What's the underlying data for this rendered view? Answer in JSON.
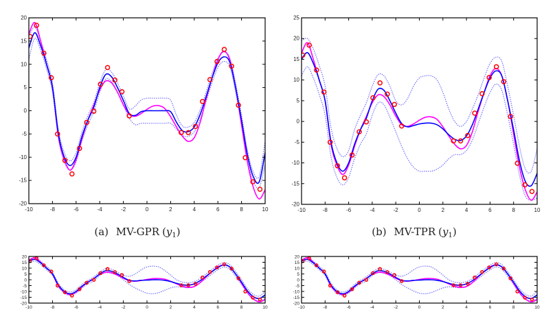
{
  "colors": {
    "truth": "#ff00ff",
    "mean": "#0000ff",
    "band": "#6f6fff",
    "observations": "#ff0000",
    "axes": "#000000"
  },
  "captions": [
    {
      "label": "(a)",
      "method": "MV-GPR",
      "variable": "y",
      "subscript": "1"
    },
    {
      "label": "(b)",
      "method": "MV-TPR",
      "variable": "y",
      "subscript": "1"
    }
  ],
  "chart_data": [
    {
      "type": "line",
      "panel": "top-left",
      "xlim": [
        -10,
        10
      ],
      "ylim": [
        -20,
        20
      ],
      "xticks": [
        -10,
        -8,
        -6,
        -4,
        -2,
        0,
        2,
        4,
        6,
        8,
        10
      ],
      "yticks": [
        -20,
        -15,
        -10,
        -5,
        0,
        5,
        10,
        15,
        20
      ],
      "grid": false,
      "x": [
        -10,
        -9.5,
        -9,
        -8.5,
        -8,
        -7.5,
        -7,
        -6.5,
        -6,
        -5.5,
        -5,
        -4.5,
        -4,
        -3.5,
        -3,
        -2.5,
        -2,
        -1.5,
        -1,
        -0.5,
        0,
        0.5,
        1,
        1.5,
        2,
        2.5,
        3,
        3.5,
        4,
        4.5,
        5,
        5.5,
        6,
        6.5,
        7,
        7.5,
        8,
        8.5,
        9,
        9.5,
        10
      ],
      "truth": [
        16.5,
        19,
        15,
        10,
        5,
        -5.5,
        -10.5,
        -12.8,
        -10.5,
        -6,
        -2,
        1.2,
        4.5,
        6.4,
        6,
        4,
        1.3,
        -0.8,
        -1.2,
        -0.6,
        0.3,
        1,
        1.1,
        0.5,
        -1.3,
        -3.5,
        -5.5,
        -6.6,
        -5.8,
        -2.5,
        2.5,
        7,
        11,
        12.8,
        11,
        5,
        -3,
        -11,
        -16.5,
        -19,
        -17
      ],
      "mean": [
        13.5,
        16.8,
        14,
        10,
        5,
        -5,
        -10,
        -11.8,
        -10,
        -5.5,
        -2,
        0.8,
        5,
        7.8,
        7.3,
        5,
        2.2,
        -0.6,
        -1,
        -0.2,
        0,
        0,
        0,
        0,
        -0.2,
        -2.5,
        -4.3,
        -4.5,
        -3.5,
        -0.8,
        3,
        7,
        10.3,
        11.6,
        10.5,
        5,
        -2,
        -9.5,
        -14.2,
        -15.3,
        -9
      ],
      "upper": [
        16,
        18,
        15,
        11,
        6,
        -4,
        -9,
        -10.8,
        -9,
        -4.5,
        -1,
        1.8,
        6,
        8.8,
        8.3,
        6,
        3.2,
        0.4,
        1,
        2.3,
        2.7,
        2.7,
        2.7,
        2.7,
        2.3,
        -1,
        -3.3,
        -3.5,
        -2.5,
        0.2,
        4,
        8,
        11.3,
        12.6,
        11.5,
        6,
        -1,
        -8.5,
        -13.2,
        -14.1,
        -6.5
      ],
      "lower": [
        11,
        15.6,
        13,
        9,
        4,
        -6,
        -11,
        -12.8,
        -11,
        -6.5,
        -3,
        -0.2,
        4,
        6.8,
        6.3,
        4,
        1.2,
        -1.6,
        -3,
        -2.7,
        -2.7,
        -2.7,
        -2.7,
        -2.7,
        -2.7,
        -4,
        -5.3,
        -5.5,
        -4.5,
        -1.8,
        2,
        6,
        9.3,
        10.6,
        9.5,
        4,
        -3,
        -10.5,
        -15.2,
        -16.5,
        -11.5
      ]
    },
    {
      "type": "line",
      "panel": "top-right",
      "xlim": [
        -10,
        10
      ],
      "ylim": [
        -20,
        25
      ],
      "xticks": [
        -10,
        -8,
        -6,
        -4,
        -2,
        0,
        2,
        4,
        6,
        8,
        10
      ],
      "yticks": [
        -20,
        -15,
        -10,
        -5,
        0,
        5,
        10,
        15,
        20,
        25
      ],
      "grid": false,
      "x": [
        -10,
        -9.5,
        -9,
        -8.5,
        -8,
        -7.5,
        -7,
        -6.5,
        -6,
        -5.5,
        -5,
        -4.5,
        -4,
        -3.5,
        -3,
        -2.5,
        -2,
        -1.5,
        -1,
        -0.5,
        0,
        0.5,
        1,
        1.5,
        2,
        2.5,
        3,
        3.5,
        4,
        4.5,
        5,
        5.5,
        6,
        6.5,
        7,
        7.5,
        8,
        8.5,
        9,
        9.5,
        10
      ],
      "truth": [
        16.5,
        19,
        15,
        10,
        5,
        -5.5,
        -10.5,
        -12.8,
        -10.5,
        -6,
        -2,
        1.2,
        4.5,
        6.4,
        6,
        4,
        1.3,
        -0.8,
        -1.2,
        -0.6,
        0.3,
        1,
        1.1,
        0.5,
        -1.3,
        -3.5,
        -5.5,
        -6.6,
        -5.8,
        -2.5,
        2.5,
        7,
        11,
        12.8,
        11,
        5,
        -3,
        -11,
        -16.5,
        -19,
        -17
      ],
      "mean": [
        15,
        16.6,
        14,
        10,
        5,
        -5,
        -10,
        -12,
        -10,
        -5.5,
        -2,
        0.8,
        5,
        7.8,
        7.5,
        5,
        2,
        -0.5,
        -1.3,
        -1,
        -0.6,
        -0.4,
        -0.4,
        -0.8,
        -1.8,
        -3.2,
        -4.3,
        -4.6,
        -3.5,
        -0.8,
        3,
        7,
        10.5,
        12.2,
        11,
        5,
        -2,
        -9.5,
        -14.5,
        -15.5,
        -12.5
      ],
      "upper": [
        19.5,
        20,
        17.5,
        13.5,
        8.5,
        -1.5,
        -6.5,
        -8.5,
        -7,
        -2,
        1.5,
        4.5,
        8.5,
        11.3,
        11,
        8.5,
        5,
        4,
        5.5,
        8.5,
        10.5,
        11,
        11,
        10,
        7,
        3,
        0,
        -1.2,
        0,
        3,
        6.5,
        10.5,
        14,
        15.5,
        14.5,
        8.5,
        1.5,
        -6,
        -11.5,
        -12,
        -6.5
      ],
      "lower": [
        11,
        13.2,
        10.5,
        6.5,
        1.5,
        -8.5,
        -13.5,
        -15.3,
        -13.5,
        -9,
        -5.5,
        -3,
        1.5,
        4.5,
        4,
        1,
        -2.5,
        -6,
        -9,
        -11,
        -12,
        -12,
        -12,
        -11.5,
        -10.5,
        -9,
        -8,
        -8,
        -7,
        -4.5,
        -0.5,
        3.5,
        7,
        9,
        7.5,
        1.5,
        -5.5,
        -13,
        -18,
        -19,
        -18.5
      ]
    },
    {
      "type": "line",
      "panel": "bottom-left",
      "xlim": [
        -10,
        10
      ],
      "ylim": [
        -20,
        20
      ],
      "xticks": [
        -10,
        -8,
        -6,
        -4,
        -2,
        0,
        2,
        4,
        6,
        8,
        10
      ],
      "yticks": [
        -20,
        -15,
        -10,
        -5,
        0,
        5,
        10,
        15,
        20
      ],
      "grid": false,
      "x": [
        -10,
        -9.5,
        -9,
        -8.5,
        -8,
        -7.5,
        -7,
        -6.5,
        -6,
        -5.5,
        -5,
        -4.5,
        -4,
        -3.5,
        -3,
        -2.5,
        -2,
        -1.5,
        -1,
        -0.5,
        0,
        0.5,
        1,
        1.5,
        2,
        2.5,
        3,
        3.5,
        4,
        4.5,
        5,
        5.5,
        6,
        6.5,
        7,
        7.5,
        8,
        8.5,
        9,
        9.5,
        10
      ],
      "truth": [
        16.5,
        19,
        15,
        10,
        5,
        -5.5,
        -10.5,
        -12.8,
        -10.5,
        -6,
        -2,
        1.2,
        4.5,
        6.4,
        6,
        4,
        1.3,
        -0.8,
        -1.2,
        -0.6,
        0.3,
        1,
        1.1,
        0.5,
        -1.3,
        -3.5,
        -5.5,
        -6.6,
        -5.8,
        -2.5,
        2.5,
        7,
        11,
        12.8,
        11,
        5,
        -3,
        -11,
        -16.5,
        -19,
        -17
      ],
      "mean": [
        16,
        17.5,
        14.5,
        10,
        5,
        -4.5,
        -10,
        -12,
        -10,
        -5.5,
        -2,
        0.8,
        5,
        7.8,
        7.3,
        5,
        2,
        -0.5,
        -1,
        -0.5,
        -0.3,
        0,
        0,
        -0.5,
        -1.5,
        -3,
        -4.3,
        -4.6,
        -3.5,
        -0.8,
        3,
        7,
        10.5,
        12.8,
        11,
        5,
        -2,
        -9.5,
        -14.5,
        -16,
        -13
      ],
      "upper": [
        17.5,
        19,
        16,
        11.5,
        6.5,
        -3,
        -8.5,
        -10.5,
        -8.5,
        -4,
        -0.5,
        2.5,
        6.5,
        9.5,
        9,
        6.5,
        4,
        3,
        5,
        8.5,
        11,
        11.7,
        11,
        8,
        4,
        0,
        -2,
        -2.5,
        -1.5,
        1,
        5,
        9,
        12.5,
        14.7,
        13,
        7,
        0,
        -7.5,
        -12.5,
        -14,
        -10
      ],
      "lower": [
        14.5,
        16,
        13,
        8.5,
        3.5,
        -6,
        -11.5,
        -13.5,
        -11.5,
        -7,
        -3.5,
        -1,
        3.5,
        6,
        5.5,
        3.5,
        0,
        -4,
        -7,
        -9.5,
        -11.5,
        -12,
        -11,
        -9,
        -7,
        -6,
        -6.5,
        -6.8,
        -5.5,
        -2.5,
        1,
        5,
        8.5,
        11,
        9,
        3,
        -4,
        -11.5,
        -16.5,
        -18,
        -16
      ]
    },
    {
      "type": "line",
      "panel": "bottom-right",
      "xlim": [
        -10,
        10
      ],
      "ylim": [
        -20,
        20
      ],
      "xticks": [
        -10,
        -8,
        -6,
        -4,
        -2,
        0,
        2,
        4,
        6,
        8,
        10
      ],
      "yticks": [
        -20,
        -15,
        -10,
        -5,
        0,
        5,
        10,
        15,
        20
      ],
      "grid": false,
      "x": [
        -10,
        -9.5,
        -9,
        -8.5,
        -8,
        -7.5,
        -7,
        -6.5,
        -6,
        -5.5,
        -5,
        -4.5,
        -4,
        -3.5,
        -3,
        -2.5,
        -2,
        -1.5,
        -1,
        -0.5,
        0,
        0.5,
        1,
        1.5,
        2,
        2.5,
        3,
        3.5,
        4,
        4.5,
        5,
        5.5,
        6,
        6.5,
        7,
        7.5,
        8,
        8.5,
        9,
        9.5,
        10
      ],
      "truth": [
        16.5,
        19,
        15,
        10,
        5,
        -5.5,
        -10.5,
        -12.8,
        -10.5,
        -6,
        -2,
        1.2,
        4.5,
        6.4,
        6,
        4,
        1.3,
        -0.8,
        -1.2,
        -0.6,
        0.3,
        1,
        1.1,
        0.5,
        -1.3,
        -3.5,
        -5.5,
        -6.6,
        -5.8,
        -2.5,
        2.5,
        7,
        11,
        12.8,
        11,
        5,
        -3,
        -11,
        -16.5,
        -19,
        -17
      ],
      "mean": [
        16,
        17.5,
        14.5,
        10,
        5,
        -4.5,
        -10,
        -12,
        -10,
        -5.5,
        -2,
        0.8,
        5,
        7.8,
        7.3,
        5,
        2,
        -0.5,
        -1,
        -0.5,
        -0.3,
        0,
        0,
        -0.5,
        -1.5,
        -3,
        -4.3,
        -4.6,
        -3.5,
        -0.8,
        3,
        7,
        10.5,
        12.8,
        11,
        5,
        -2,
        -9.5,
        -14.5,
        -16,
        -13
      ],
      "upper": [
        17.5,
        19,
        16,
        11.5,
        6.5,
        -3,
        -8.5,
        -10.5,
        -8.5,
        -4,
        -0.5,
        2.5,
        6.5,
        9.5,
        9,
        6.5,
        4,
        3,
        5,
        8.5,
        11,
        11.7,
        11,
        8,
        4,
        0,
        -2,
        -2.5,
        -1.5,
        1,
        5,
        9,
        12.5,
        14.7,
        13,
        7,
        0,
        -7.5,
        -12.5,
        -14,
        -10
      ],
      "lower": [
        14.5,
        16,
        13,
        8.5,
        3.5,
        -6,
        -11.5,
        -13.5,
        -11.5,
        -7,
        -3.5,
        -1,
        3.5,
        6,
        5.5,
        3.5,
        0,
        -4,
        -7,
        -9.5,
        -11.5,
        -12,
        -11,
        -9,
        -7,
        -6,
        -6.5,
        -6.8,
        -5.5,
        -2.5,
        1,
        5,
        8.5,
        11,
        9,
        3,
        -4,
        -11.5,
        -16.5,
        -18,
        -16
      ]
    }
  ],
  "observations": {
    "x": [
      -9.9,
      -9.35,
      -8.73,
      -8.1,
      -7.57,
      -6.95,
      -6.35,
      -5.71,
      -5.1,
      -4.5,
      -3.94,
      -3.34,
      -2.72,
      -2.12,
      -1.5,
      2.9,
      3.5,
      4.1,
      4.7,
      5.33,
      5.93,
      6.54,
      7.16,
      7.74,
      8.32,
      8.96,
      9.56
    ],
    "y": [
      16,
      18.4,
      12.4,
      7.1,
      -5,
      -10.7,
      -13.6,
      -8.1,
      -2.5,
      -0.1,
      5.7,
      9.3,
      6.6,
      4.1,
      -1.1,
      -4.7,
      -4.7,
      -3.4,
      2,
      6.7,
      10.6,
      13.2,
      9.6,
      1.2,
      -10.1,
      -15.3,
      -16.9
    ]
  }
}
